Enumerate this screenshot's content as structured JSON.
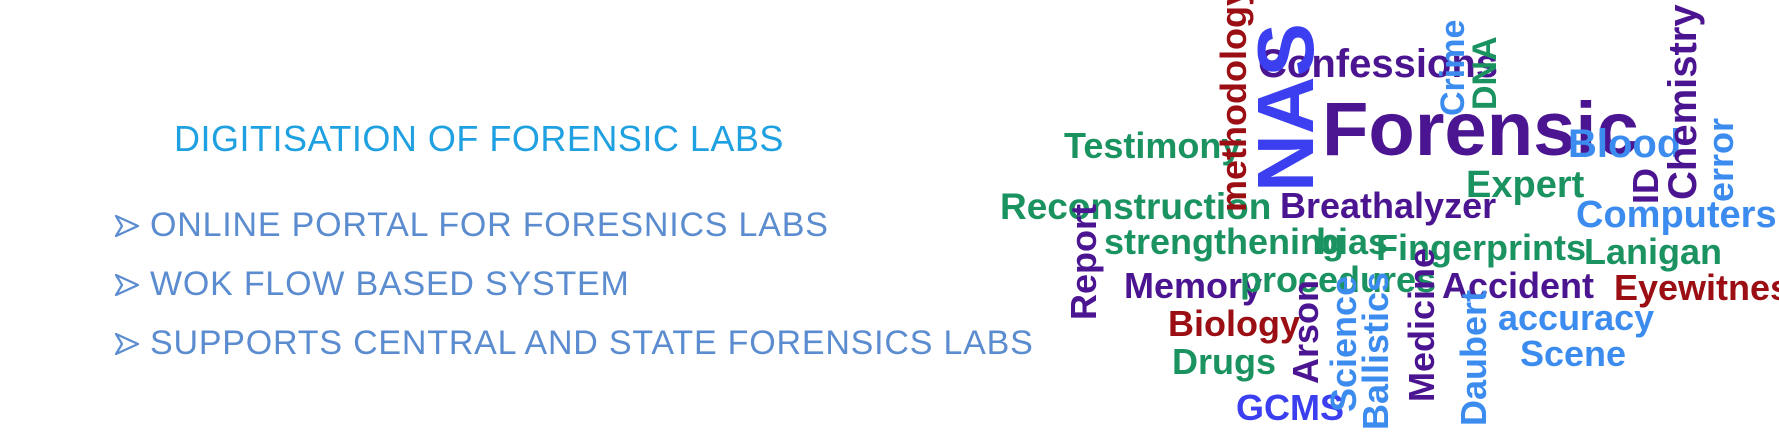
{
  "heading": "DIGITISATION OF FORENSIC LABS",
  "bullets": [
    "ONLINE PORTAL FOR FORESNICS LABS",
    "WOK FLOW BASED SYSTEM",
    "SUPPORTS CENTRAL AND STATE FORENSICS LABS"
  ],
  "colors": {
    "heading": "#1fa0e0",
    "bullet_text": "#5b8ccf",
    "cloud_green": "#1a9361",
    "cloud_purple": "#4b1591",
    "cloud_blue": "#3b3ff0",
    "cloud_lightblue": "#3c8cf0",
    "cloud_darkred": "#9b0f14"
  },
  "word_cloud": {
    "confessions": "Confessions",
    "crime": "Crime",
    "dna": "DNA",
    "methodology": "methodology",
    "nas": "NAS",
    "forensic": "Forensic",
    "blood": "Blood",
    "chemistry": "Chemistry",
    "error": "error",
    "testimony": "Testimony",
    "expert": "Expert",
    "id": "ID",
    "computers": "Computers",
    "reconstruction": "Reconstruction",
    "breathalyzer": "Breathalyzer",
    "report": "Report",
    "strengthening": "strengthening",
    "bias": "bias",
    "fingerprints": "Fingerprints",
    "lanigan": "Lanigan",
    "memory": "Memory",
    "procedures": "procedures",
    "accident": "Accident",
    "eyewitness": "Eyewitness",
    "biology": "Biology",
    "arson": "Arson",
    "science": "Science",
    "ballistics": "Ballistics",
    "medicine": "Medicine",
    "daubert": "Daubert",
    "accuracy": "accuracy",
    "scene": "Scene",
    "drugs": "Drugs",
    "gcms": "GCMS"
  }
}
